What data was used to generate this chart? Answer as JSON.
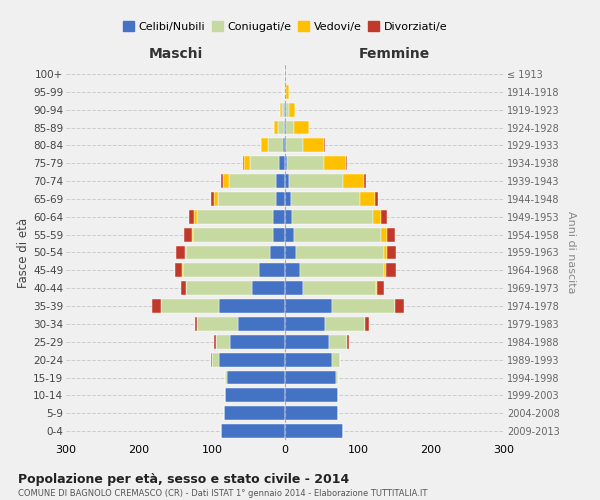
{
  "age_groups": [
    "0-4",
    "5-9",
    "10-14",
    "15-19",
    "20-24",
    "25-29",
    "30-34",
    "35-39",
    "40-44",
    "45-49",
    "50-54",
    "55-59",
    "60-64",
    "65-69",
    "70-74",
    "75-79",
    "80-84",
    "85-89",
    "90-94",
    "95-99",
    "100+"
  ],
  "birth_years": [
    "2009-2013",
    "2004-2008",
    "1999-2003",
    "1994-1998",
    "1989-1993",
    "1984-1988",
    "1979-1983",
    "1974-1978",
    "1969-1973",
    "1964-1968",
    "1959-1963",
    "1954-1958",
    "1949-1953",
    "1944-1948",
    "1939-1943",
    "1934-1938",
    "1929-1933",
    "1924-1928",
    "1919-1923",
    "1914-1918",
    "≤ 1913"
  ],
  "males": {
    "celibe": [
      88,
      83,
      82,
      80,
      90,
      75,
      65,
      90,
      45,
      35,
      20,
      16,
      16,
      12,
      12,
      8,
      3,
      2,
      1,
      0,
      0
    ],
    "coniugato": [
      0,
      0,
      0,
      2,
      10,
      20,
      55,
      80,
      90,
      105,
      115,
      110,
      105,
      80,
      65,
      40,
      20,
      8,
      3,
      1,
      0
    ],
    "vedovo": [
      0,
      0,
      0,
      0,
      0,
      0,
      0,
      0,
      0,
      1,
      2,
      2,
      3,
      5,
      8,
      8,
      10,
      5,
      3,
      1,
      0
    ],
    "divorziato": [
      0,
      0,
      0,
      0,
      1,
      2,
      3,
      12,
      8,
      10,
      12,
      10,
      8,
      5,
      3,
      2,
      0,
      0,
      0,
      0,
      0
    ]
  },
  "females": {
    "nubile": [
      80,
      73,
      72,
      70,
      65,
      60,
      55,
      65,
      25,
      20,
      15,
      12,
      10,
      8,
      5,
      3,
      2,
      1,
      1,
      0,
      0
    ],
    "coniugata": [
      0,
      0,
      0,
      2,
      10,
      25,
      55,
      85,
      100,
      115,
      120,
      120,
      110,
      95,
      75,
      50,
      22,
      12,
      5,
      2,
      0
    ],
    "vedova": [
      0,
      0,
      0,
      0,
      0,
      0,
      0,
      1,
      1,
      3,
      5,
      8,
      12,
      20,
      28,
      30,
      30,
      20,
      8,
      3,
      1
    ],
    "divorziata": [
      0,
      0,
      0,
      0,
      1,
      2,
      5,
      12,
      10,
      14,
      12,
      10,
      8,
      5,
      3,
      2,
      1,
      0,
      0,
      0,
      0
    ]
  },
  "colors": {
    "celibe": "#4472c4",
    "coniugato": "#c5d9a0",
    "vedovo": "#ffc000",
    "divorziato": "#c0392b"
  },
  "title": "Popolazione per età, sesso e stato civile - 2014",
  "subtitle": "COMUNE DI BAGNOLO CREMASCO (CR) - Dati ISTAT 1° gennaio 2014 - Elaborazione TUTTITALIA.IT",
  "xlabel_left": "Maschi",
  "xlabel_right": "Femmine",
  "ylabel_left": "Fasce di età",
  "ylabel_right": "Anni di nascita",
  "xlim": 300,
  "legend_labels": [
    "Celibi/Nubili",
    "Coniugati/e",
    "Vedovi/e",
    "Divorziati/e"
  ],
  "bg_color": "#f0f0f0",
  "grid_color": "#cccccc"
}
